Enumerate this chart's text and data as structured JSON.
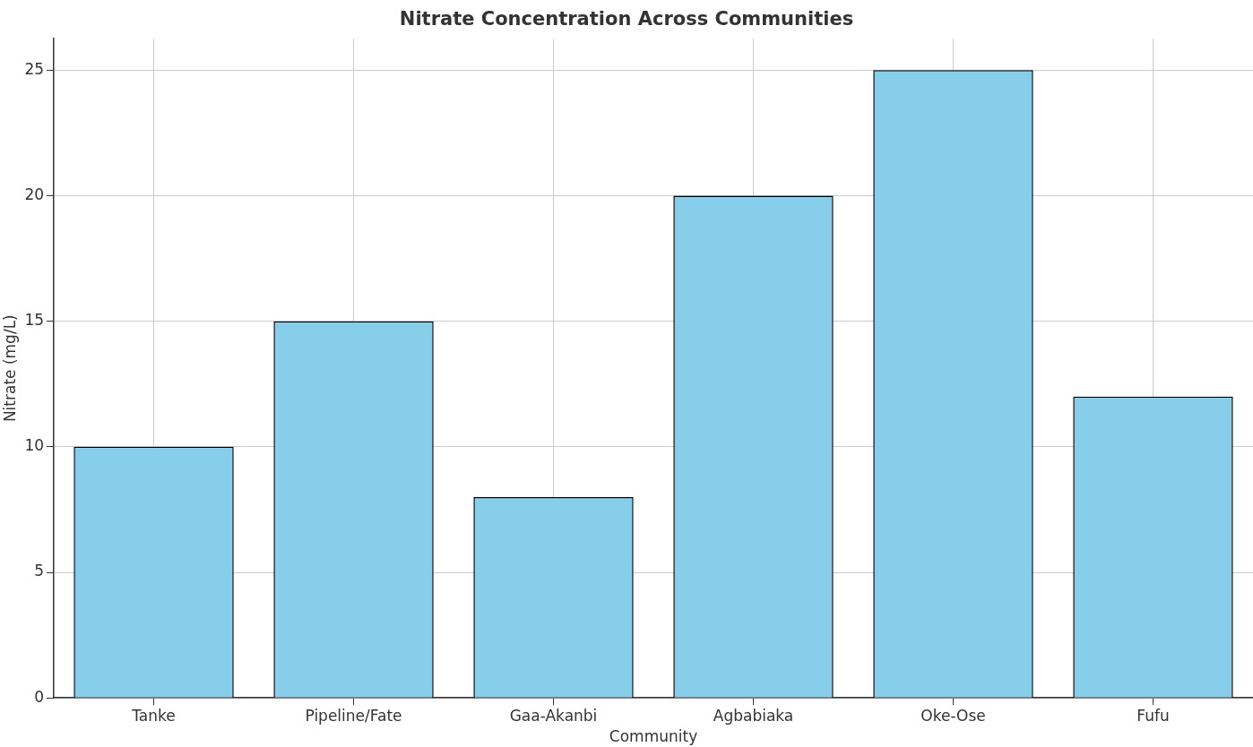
{
  "chart_data": {
    "type": "bar",
    "title": "Nitrate Concentration Across Communities",
    "xlabel": "Community",
    "ylabel": "Nitrate (mg/L)",
    "categories": [
      "Tanke",
      "Pipeline/Fate",
      "Gaa-Akanbi",
      "Agbabiaka",
      "Oke-Ose",
      "Fufu"
    ],
    "values": [
      10,
      15,
      8,
      20,
      25,
      12
    ],
    "color": "#87ceeb",
    "ylim": [
      0,
      26.25
    ],
    "yticks": [
      0,
      5,
      10,
      15,
      20,
      25
    ],
    "grid": true
  }
}
